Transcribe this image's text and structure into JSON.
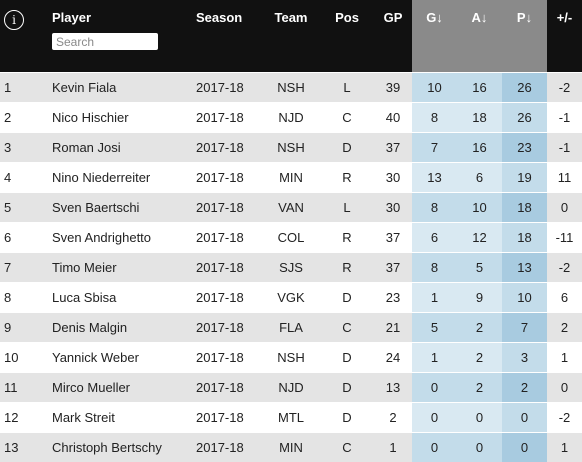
{
  "header": {
    "info_icon": "ⓘ",
    "player": "Player",
    "search_placeholder": "Search",
    "season": "Season",
    "team": "Team",
    "pos": "Pos",
    "gp": "GP",
    "g": "G↓",
    "a": "A↓",
    "p": "P↓",
    "plusminus": "+/-"
  },
  "rows": [
    {
      "rank": "1",
      "player": "Kevin Fiala",
      "season": "2017-18",
      "team": "NSH",
      "pos": "L",
      "gp": "39",
      "g": "10",
      "a": "16",
      "p": "26",
      "pm": "-2"
    },
    {
      "rank": "2",
      "player": "Nico Hischier",
      "season": "2017-18",
      "team": "NJD",
      "pos": "C",
      "gp": "40",
      "g": "8",
      "a": "18",
      "p": "26",
      "pm": "-1"
    },
    {
      "rank": "3",
      "player": "Roman Josi",
      "season": "2017-18",
      "team": "NSH",
      "pos": "D",
      "gp": "37",
      "g": "7",
      "a": "16",
      "p": "23",
      "pm": "-1"
    },
    {
      "rank": "4",
      "player": "Nino Niederreiter",
      "season": "2017-18",
      "team": "MIN",
      "pos": "R",
      "gp": "30",
      "g": "13",
      "a": "6",
      "p": "19",
      "pm": "11"
    },
    {
      "rank": "5",
      "player": "Sven Baertschi",
      "season": "2017-18",
      "team": "VAN",
      "pos": "L",
      "gp": "30",
      "g": "8",
      "a": "10",
      "p": "18",
      "pm": "0"
    },
    {
      "rank": "6",
      "player": "Sven Andrighetto",
      "season": "2017-18",
      "team": "COL",
      "pos": "R",
      "gp": "37",
      "g": "6",
      "a": "12",
      "p": "18",
      "pm": "-11"
    },
    {
      "rank": "7",
      "player": "Timo Meier",
      "season": "2017-18",
      "team": "SJS",
      "pos": "R",
      "gp": "37",
      "g": "8",
      "a": "5",
      "p": "13",
      "pm": "-2"
    },
    {
      "rank": "8",
      "player": "Luca Sbisa",
      "season": "2017-18",
      "team": "VGK",
      "pos": "D",
      "gp": "23",
      "g": "1",
      "a": "9",
      "p": "10",
      "pm": "6"
    },
    {
      "rank": "9",
      "player": "Denis Malgin",
      "season": "2017-18",
      "team": "FLA",
      "pos": "C",
      "gp": "21",
      "g": "5",
      "a": "2",
      "p": "7",
      "pm": "2"
    },
    {
      "rank": "10",
      "player": "Yannick Weber",
      "season": "2017-18",
      "team": "NSH",
      "pos": "D",
      "gp": "24",
      "g": "1",
      "a": "2",
      "p": "3",
      "pm": "1"
    },
    {
      "rank": "11",
      "player": "Mirco Mueller",
      "season": "2017-18",
      "team": "NJD",
      "pos": "D",
      "gp": "13",
      "g": "0",
      "a": "2",
      "p": "2",
      "pm": "0"
    },
    {
      "rank": "12",
      "player": "Mark Streit",
      "season": "2017-18",
      "team": "MTL",
      "pos": "D",
      "gp": "2",
      "g": "0",
      "a": "0",
      "p": "0",
      "pm": "-2"
    },
    {
      "rank": "13",
      "player": "Christoph Bertschy",
      "season": "2017-18",
      "team": "MIN",
      "pos": "C",
      "gp": "1",
      "g": "0",
      "a": "0",
      "p": "0",
      "pm": "1"
    }
  ],
  "colors": {
    "header_bg": "#111111",
    "sorted_header_bg": "#8a8a8a",
    "stripe_gray": "#e4e4e4",
    "stat_blue_light": "#d9e9f2",
    "stat_blue_mid": "#c3dcea",
    "stat_blue_dark": "#a8cbe0"
  }
}
